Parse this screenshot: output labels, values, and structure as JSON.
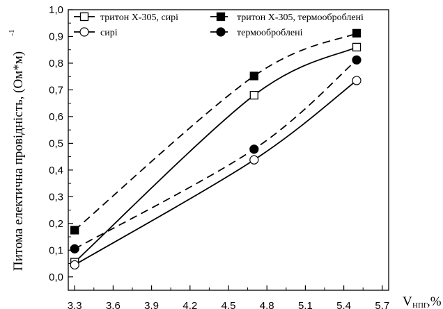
{
  "chart_data": {
    "type": "line",
    "ylabel": "Питома електична провідність, (Ом*м)",
    "ylabel_sup": "-1",
    "xlabel_main": "V",
    "xlabel_sub": "НПГ",
    "xlabel_unit": ",%",
    "xlim": [
      3.25,
      5.75
    ],
    "ylim": [
      -0.05,
      1.0
    ],
    "xticks": [
      "3,3",
      "3,6",
      "3,9",
      "4,2",
      "4,5",
      "4,8",
      "5,1",
      "5,4",
      "5,7"
    ],
    "yticks": [
      "0,0",
      "0,1",
      "0,2",
      "0,3",
      "0,4",
      "0,5",
      "0,6",
      "0,7",
      "0,8",
      "0,9",
      "1,0"
    ],
    "legend_position": "top",
    "series": [
      {
        "name": "тритон Х-305, сирі",
        "marker": "square-open",
        "line": "solid",
        "x": [
          3.3,
          4.7,
          5.5
        ],
        "y": [
          0.055,
          0.68,
          0.86
        ]
      },
      {
        "name": "тритон Х-305, термооброблені",
        "marker": "square-filled",
        "line": "dashed",
        "x": [
          3.3,
          4.7,
          5.5
        ],
        "y": [
          0.175,
          0.752,
          0.912
        ]
      },
      {
        "name": "сирі",
        "marker": "circle-open",
        "line": "solid",
        "x": [
          3.3,
          4.7,
          5.5
        ],
        "y": [
          0.045,
          0.438,
          0.735
        ]
      },
      {
        "name": "термооброблені",
        "marker": "circle-filled",
        "line": "dashed",
        "x": [
          3.3,
          4.7,
          5.5
        ],
        "y": [
          0.105,
          0.478,
          0.812
        ]
      }
    ]
  }
}
